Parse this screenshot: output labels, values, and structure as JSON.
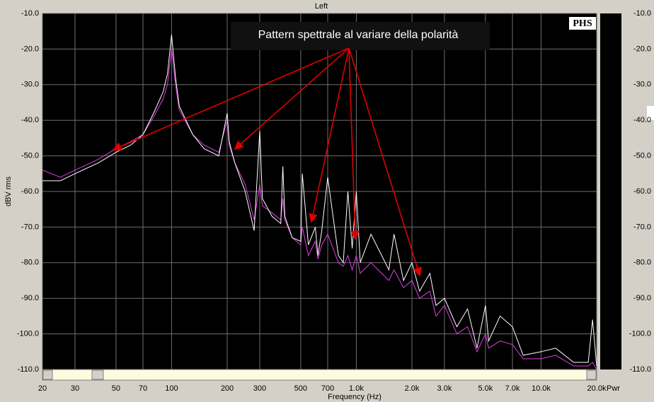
{
  "chart_data": {
    "type": "line",
    "title": "Left",
    "xlabel": "Frequency (Hz)",
    "ylabel": "dBV rms",
    "meter_label": "Pwr",
    "logo": "PHS",
    "annotation": "Pattern spettrale al variare della polarità",
    "x_log": true,
    "grid": true,
    "xlim": [
      20,
      20000
    ],
    "ylim": [
      -110,
      -10
    ],
    "xticks": [
      20,
      30,
      50,
      70,
      100,
      200,
      300,
      500,
      700,
      {
        "value": 1000,
        "label": "1.0k"
      },
      {
        "value": 2000,
        "label": "2.0k"
      },
      {
        "value": 3000,
        "label": "3.0k"
      },
      {
        "value": 5000,
        "label": "5.0k"
      },
      {
        "value": 7000,
        "label": "7.0k"
      },
      {
        "value": 10000,
        "label": "10.0k"
      },
      {
        "value": 20000,
        "label": "20.0k"
      }
    ],
    "yticks": [
      {
        "value": -10,
        "label": "-10.0"
      },
      {
        "value": -20,
        "label": "-20.0"
      },
      {
        "value": -30,
        "label": "-30.0"
      },
      {
        "value": -40,
        "label": "-40.0"
      },
      {
        "value": -50,
        "label": "-50.0"
      },
      {
        "value": -60,
        "label": "-60.0"
      },
      {
        "value": -70,
        "label": "-70.0"
      },
      {
        "value": -80,
        "label": "-80.0"
      },
      {
        "value": -90,
        "label": "-90.0"
      },
      {
        "value": -100,
        "label": "-100.0"
      },
      {
        "value": -110,
        "label": "-110.0"
      }
    ],
    "x": [
      20,
      25,
      30,
      40,
      50,
      60,
      70,
      80,
      90,
      95,
      100,
      105,
      110,
      130,
      150,
      180,
      200,
      205,
      220,
      250,
      280,
      300,
      310,
      350,
      390,
      400,
      410,
      450,
      500,
      510,
      550,
      600,
      620,
      650,
      700,
      800,
      850,
      900,
      950,
      1000,
      1050,
      1200,
      1500,
      1600,
      1800,
      2000,
      2200,
      2500,
      2700,
      3000,
      3500,
      4000,
      4500,
      5000,
      5200,
      6000,
      7000,
      8000,
      10000,
      12000,
      15000,
      18000,
      19000,
      20000
    ],
    "series": [
      {
        "color": "#e040e0",
        "values": [
          -54,
          -56,
          -54,
          -51,
          -48,
          -46,
          -44,
          -39,
          -34,
          -30,
          -20,
          -30,
          -37,
          -44,
          -47,
          -49,
          -40,
          -47,
          -52,
          -58,
          -68,
          -58,
          -64,
          -66,
          -68,
          -62,
          -68,
          -73,
          -75,
          -70,
          -78,
          -74,
          -79,
          -75,
          -72,
          -80,
          -81,
          -78,
          -82,
          -78,
          -83,
          -80,
          -85,
          -82,
          -87,
          -85,
          -90,
          -88,
          -95,
          -92,
          -100,
          -98,
          -105,
          -100,
          -104,
          -102,
          -103,
          -107,
          -107,
          -106,
          -109,
          -109,
          -108,
          -110
        ]
      },
      {
        "color": "#ffffff",
        "values": [
          -57,
          -57,
          -55,
          -52,
          -49,
          -47,
          -44,
          -38,
          -32,
          -27,
          -16,
          -28,
          -36,
          -44,
          -48,
          -50,
          -38,
          -46,
          -52,
          -60,
          -71,
          -43,
          -62,
          -67,
          -69,
          -53,
          -67,
          -73,
          -74,
          -55,
          -75,
          -70,
          -78,
          -71,
          -56,
          -78,
          -80,
          -60,
          -76,
          -60,
          -80,
          -72,
          -82,
          -72,
          -85,
          -80,
          -88,
          -83,
          -92,
          -90,
          -98,
          -93,
          -104,
          -92,
          -102,
          -95,
          -98,
          -106,
          -105,
          -104,
          -108,
          -108,
          -96,
          -109
        ]
      }
    ]
  }
}
